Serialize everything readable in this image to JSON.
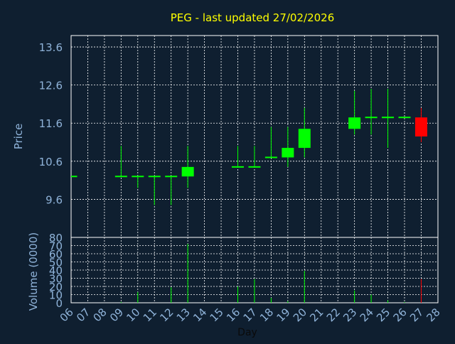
{
  "title": "PEG - last updated 27/02/2026",
  "colors": {
    "background": "#0f1f30",
    "title": "#ffff00",
    "axis_text": "#8fb3d9",
    "grid": "#ffffff",
    "up": "#00ff00",
    "down": "#ff0000"
  },
  "chart_data": [
    {
      "type": "candlestick",
      "title": "PEG - last updated 27/02/2026",
      "ylabel": "Price",
      "ylim": [
        8.6,
        13.9
      ],
      "yticks": [
        "9.6",
        "10.6",
        "11.6",
        "12.6",
        "13.6"
      ],
      "grid": true,
      "candles": [
        {
          "day": "06",
          "open": 10.2,
          "high": 10.2,
          "low": 10.2,
          "close": 10.2
        },
        {
          "day": "09",
          "open": 10.2,
          "high": 11.0,
          "low": 10.2,
          "close": 10.2
        },
        {
          "day": "10",
          "open": 10.2,
          "high": 10.2,
          "low": 9.9,
          "close": 10.2
        },
        {
          "day": "11",
          "open": 10.2,
          "high": 10.2,
          "low": 9.45,
          "close": 10.2
        },
        {
          "day": "12",
          "open": 10.2,
          "high": 10.2,
          "low": 9.45,
          "close": 10.2
        },
        {
          "day": "13",
          "open": 10.2,
          "high": 11.0,
          "low": 9.9,
          "close": 10.45
        },
        {
          "day": "16",
          "open": 10.45,
          "high": 11.0,
          "low": 10.45,
          "close": 10.45
        },
        {
          "day": "17",
          "open": 10.45,
          "high": 11.0,
          "low": 10.45,
          "close": 10.45
        },
        {
          "day": "18",
          "open": 10.7,
          "high": 11.5,
          "low": 10.7,
          "close": 10.7
        },
        {
          "day": "19",
          "open": 10.7,
          "high": 11.5,
          "low": 10.45,
          "close": 10.95
        },
        {
          "day": "20",
          "open": 10.95,
          "high": 12.0,
          "low": 10.7,
          "close": 11.45
        },
        {
          "day": "23",
          "open": 11.45,
          "high": 12.45,
          "low": 11.3,
          "close": 11.75
        },
        {
          "day": "24",
          "open": 11.75,
          "high": 12.5,
          "low": 11.3,
          "close": 11.75
        },
        {
          "day": "25",
          "open": 11.75,
          "high": 12.5,
          "low": 10.95,
          "close": 11.75
        },
        {
          "day": "26",
          "open": 11.75,
          "high": 11.75,
          "low": 11.75,
          "close": 11.75
        },
        {
          "day": "27",
          "open": 11.75,
          "high": 12.0,
          "low": 11.1,
          "close": 11.25
        }
      ]
    },
    {
      "type": "bar",
      "ylabel": "Volume (0000)",
      "xlabel": "Day",
      "ylim": [
        0,
        80
      ],
      "yticks": [
        "0",
        "10",
        "20",
        "30",
        "40",
        "50",
        "60",
        "70",
        "80"
      ],
      "grid": true,
      "x_ticks": [
        "06",
        "07",
        "08",
        "09",
        "10",
        "11",
        "12",
        "13",
        "14",
        "15",
        "16",
        "17",
        "18",
        "19",
        "20",
        "21",
        "22",
        "23",
        "24",
        "25",
        "26",
        "27",
        "28"
      ],
      "categories": [
        "09",
        "10",
        "12",
        "13",
        "16",
        "17",
        "18",
        "19",
        "20",
        "23",
        "24",
        "25",
        "26",
        "27"
      ],
      "values": [
        1,
        13,
        19,
        72,
        20,
        29,
        6,
        2,
        39,
        15,
        10,
        3,
        1,
        29
      ],
      "directions": [
        "flat",
        "flat",
        "flat",
        "up",
        "flat",
        "flat",
        "flat",
        "up",
        "up",
        "up",
        "flat",
        "flat",
        "flat",
        "down"
      ]
    }
  ]
}
